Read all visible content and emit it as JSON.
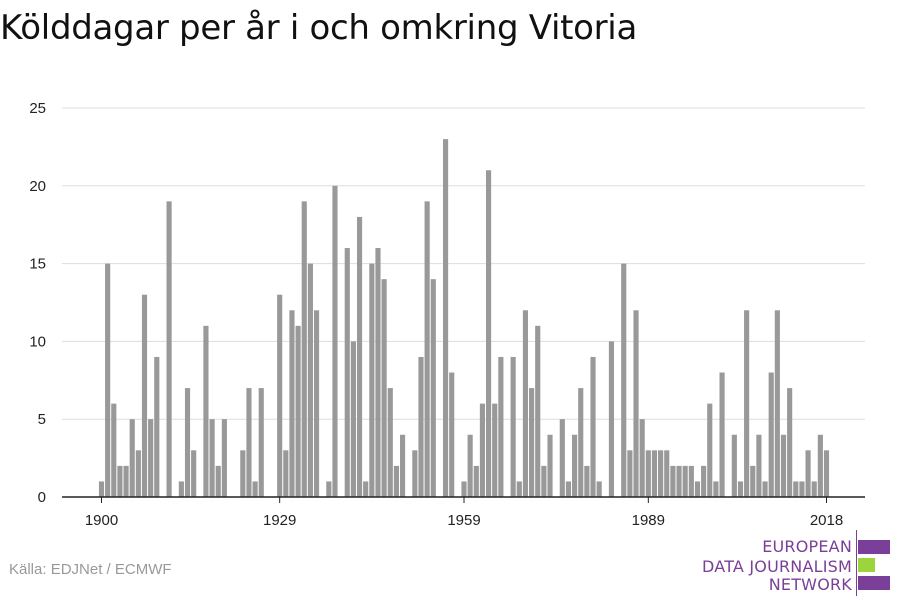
{
  "title": "Kölddagar per år i och omkring Vitoria",
  "source": "Källa: EDJNet / ECMWF",
  "logo": {
    "lines": [
      "EUROPEAN",
      "DATA JOURNALISM",
      "NETWORK"
    ],
    "text_color": "#7a3f98",
    "bar_colors": [
      "#7a3f98",
      "#9bd43c",
      "#7a3f98"
    ]
  },
  "chart_data": {
    "type": "bar",
    "title": "Kölddagar per år i och omkring Vitoria",
    "xlabel": "",
    "ylabel": "",
    "x_ticks": [
      1900,
      1929,
      1959,
      1989,
      2018
    ],
    "y_ticks": [
      0,
      5,
      10,
      15,
      20,
      25
    ],
    "ylim": [
      0,
      25
    ],
    "xlim": [
      1900,
      2018
    ],
    "grid": true,
    "bar_color": "#999999",
    "categories": [
      1900,
      1901,
      1902,
      1903,
      1904,
      1905,
      1906,
      1907,
      1908,
      1909,
      1910,
      1911,
      1912,
      1913,
      1914,
      1915,
      1916,
      1917,
      1918,
      1919,
      1920,
      1921,
      1922,
      1923,
      1924,
      1925,
      1926,
      1927,
      1928,
      1929,
      1930,
      1931,
      1932,
      1933,
      1934,
      1935,
      1936,
      1937,
      1938,
      1939,
      1940,
      1941,
      1942,
      1943,
      1944,
      1945,
      1946,
      1947,
      1948,
      1949,
      1950,
      1951,
      1952,
      1953,
      1954,
      1955,
      1956,
      1957,
      1958,
      1959,
      1960,
      1961,
      1962,
      1963,
      1964,
      1965,
      1966,
      1967,
      1968,
      1969,
      1970,
      1971,
      1972,
      1973,
      1974,
      1975,
      1976,
      1977,
      1978,
      1979,
      1980,
      1981,
      1982,
      1983,
      1984,
      1985,
      1986,
      1987,
      1988,
      1989,
      1990,
      1991,
      1992,
      1993,
      1994,
      1995,
      1996,
      1997,
      1998,
      1999,
      2000,
      2001,
      2002,
      2003,
      2004,
      2005,
      2006,
      2007,
      2008,
      2009,
      2010,
      2011,
      2012,
      2013,
      2014,
      2015,
      2016,
      2017,
      2018
    ],
    "values": [
      1,
      15,
      6,
      2,
      2,
      5,
      3,
      13,
      5,
      9,
      0,
      19,
      0,
      1,
      7,
      3,
      0,
      11,
      5,
      2,
      5,
      0,
      0,
      3,
      7,
      1,
      7,
      0,
      0,
      13,
      3,
      12,
      11,
      19,
      15,
      12,
      0,
      1,
      20,
      0,
      16,
      10,
      18,
      1,
      15,
      16,
      14,
      7,
      2,
      4,
      0,
      3,
      9,
      19,
      14,
      0,
      23,
      8,
      0,
      1,
      4,
      2,
      6,
      21,
      6,
      9,
      0,
      9,
      1,
      12,
      7,
      11,
      2,
      4,
      0,
      5,
      1,
      4,
      7,
      2,
      9,
      1,
      0,
      10,
      0,
      15,
      3,
      12,
      5,
      3,
      3,
      3,
      3,
      2,
      2,
      2,
      2,
      1,
      2,
      6,
      1,
      8,
      0,
      4,
      1,
      12,
      2,
      4,
      1,
      8,
      12,
      4,
      7,
      1,
      1,
      3,
      1,
      4,
      3
    ]
  }
}
